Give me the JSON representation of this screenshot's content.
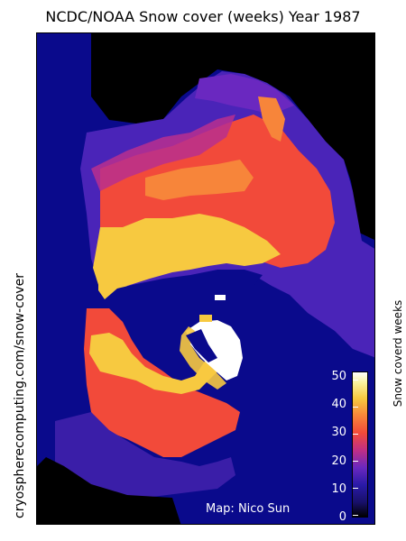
{
  "title": "NCDC/NOAA Snow cover (weeks) Year 1987",
  "side_label": "cryospherecomputing.com/snow-cover",
  "credit": "Map: Nico Sun",
  "colorbar": {
    "label": "Snow coverd weeks",
    "ticks": [
      "50",
      "40",
      "30",
      "20",
      "10",
      "0"
    ]
  },
  "colors": {
    "background_ocean": "#0a0a8c",
    "no_snow_land": "#000000",
    "low": "#2a1aa8",
    "mid": "#f24a3a",
    "high": "#f7c940",
    "max": "#ffffff"
  }
}
